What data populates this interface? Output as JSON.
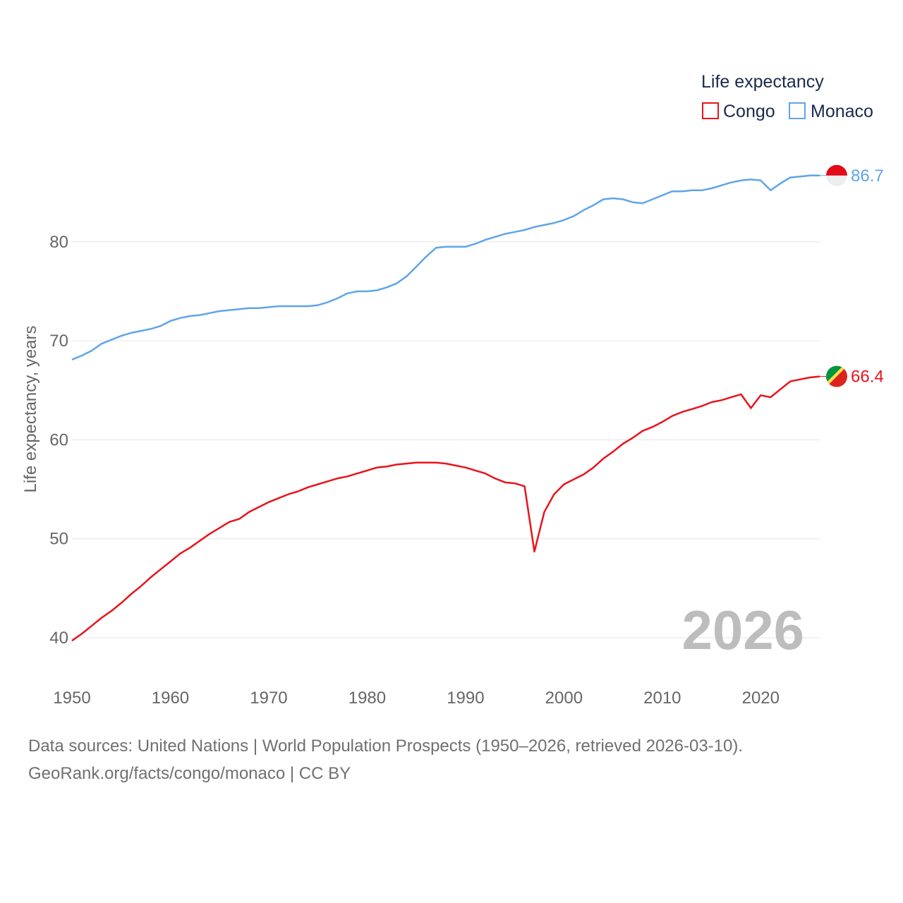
{
  "chart_data": {
    "type": "line",
    "legend": {
      "title": "Life expectancy",
      "placement": "top-right"
    },
    "ylabel": "Life expectancy, years",
    "xlabel": "",
    "xlim": [
      1950,
      2026
    ],
    "ylim": [
      35,
      90
    ],
    "x_ticks": [
      "1950",
      "1960",
      "1970",
      "1980",
      "1990",
      "2000",
      "2010",
      "2020"
    ],
    "y_ticks": [
      "40",
      "50",
      "60",
      "70",
      "80"
    ],
    "year_watermark": "2026",
    "series": [
      {
        "name": "Congo",
        "color": "#e8141c",
        "end_label": "66.4",
        "flag_icon": "congo-flag-icon",
        "points": [
          [
            1950,
            39.7
          ],
          [
            1951,
            40.4
          ],
          [
            1952,
            41.2
          ],
          [
            1953,
            42.0
          ],
          [
            1954,
            42.7
          ],
          [
            1955,
            43.5
          ],
          [
            1956,
            44.4
          ],
          [
            1957,
            45.2
          ],
          [
            1958,
            46.1
          ],
          [
            1959,
            46.9
          ],
          [
            1960,
            47.7
          ],
          [
            1961,
            48.5
          ],
          [
            1962,
            49.1
          ],
          [
            1963,
            49.8
          ],
          [
            1964,
            50.5
          ],
          [
            1965,
            51.1
          ],
          [
            1966,
            51.7
          ],
          [
            1967,
            52.0
          ],
          [
            1968,
            52.7
          ],
          [
            1969,
            53.2
          ],
          [
            1970,
            53.7
          ],
          [
            1971,
            54.1
          ],
          [
            1972,
            54.5
          ],
          [
            1973,
            54.8
          ],
          [
            1974,
            55.2
          ],
          [
            1975,
            55.5
          ],
          [
            1976,
            55.8
          ],
          [
            1977,
            56.1
          ],
          [
            1978,
            56.3
          ],
          [
            1979,
            56.6
          ],
          [
            1980,
            56.9
          ],
          [
            1981,
            57.2
          ],
          [
            1982,
            57.3
          ],
          [
            1983,
            57.5
          ],
          [
            1984,
            57.6
          ],
          [
            1985,
            57.7
          ],
          [
            1986,
            57.7
          ],
          [
            1987,
            57.7
          ],
          [
            1988,
            57.6
          ],
          [
            1989,
            57.4
          ],
          [
            1990,
            57.2
          ],
          [
            1991,
            56.9
          ],
          [
            1992,
            56.6
          ],
          [
            1993,
            56.1
          ],
          [
            1994,
            55.7
          ],
          [
            1995,
            55.6
          ],
          [
            1996,
            55.3
          ],
          [
            1997,
            48.7
          ],
          [
            1998,
            52.7
          ],
          [
            1999,
            54.5
          ],
          [
            2000,
            55.5
          ],
          [
            2001,
            56.0
          ],
          [
            2002,
            56.5
          ],
          [
            2003,
            57.2
          ],
          [
            2004,
            58.1
          ],
          [
            2005,
            58.8
          ],
          [
            2006,
            59.6
          ],
          [
            2007,
            60.2
          ],
          [
            2008,
            60.9
          ],
          [
            2009,
            61.3
          ],
          [
            2010,
            61.8
          ],
          [
            2011,
            62.4
          ],
          [
            2012,
            62.8
          ],
          [
            2013,
            63.1
          ],
          [
            2014,
            63.4
          ],
          [
            2015,
            63.8
          ],
          [
            2016,
            64.0
          ],
          [
            2017,
            64.3
          ],
          [
            2018,
            64.6
          ],
          [
            2019,
            63.2
          ],
          [
            2020,
            64.5
          ],
          [
            2021,
            64.3
          ],
          [
            2022,
            65.1
          ],
          [
            2023,
            65.9
          ],
          [
            2024,
            66.1
          ],
          [
            2025,
            66.3
          ],
          [
            2026,
            66.4
          ]
        ]
      },
      {
        "name": "Monaco",
        "color": "#60a5e8",
        "end_label": "86.7",
        "flag_icon": "monaco-flag-icon",
        "points": [
          [
            1950,
            68.1
          ],
          [
            1951,
            68.5
          ],
          [
            1952,
            69.0
          ],
          [
            1953,
            69.7
          ],
          [
            1954,
            70.1
          ],
          [
            1955,
            70.5
          ],
          [
            1956,
            70.8
          ],
          [
            1957,
            71.0
          ],
          [
            1958,
            71.2
          ],
          [
            1959,
            71.5
          ],
          [
            1960,
            72.0
          ],
          [
            1961,
            72.3
          ],
          [
            1962,
            72.5
          ],
          [
            1963,
            72.6
          ],
          [
            1964,
            72.8
          ],
          [
            1965,
            73.0
          ],
          [
            1966,
            73.1
          ],
          [
            1967,
            73.2
          ],
          [
            1968,
            73.3
          ],
          [
            1969,
            73.3
          ],
          [
            1970,
            73.4
          ],
          [
            1971,
            73.5
          ],
          [
            1972,
            73.5
          ],
          [
            1973,
            73.5
          ],
          [
            1974,
            73.5
          ],
          [
            1975,
            73.6
          ],
          [
            1976,
            73.9
          ],
          [
            1977,
            74.3
          ],
          [
            1978,
            74.8
          ],
          [
            1979,
            75.0
          ],
          [
            1980,
            75.0
          ],
          [
            1981,
            75.1
          ],
          [
            1982,
            75.4
          ],
          [
            1983,
            75.8
          ],
          [
            1984,
            76.5
          ],
          [
            1985,
            77.5
          ],
          [
            1986,
            78.5
          ],
          [
            1987,
            79.4
          ],
          [
            1988,
            79.5
          ],
          [
            1989,
            79.5
          ],
          [
            1990,
            79.5
          ],
          [
            1991,
            79.8
          ],
          [
            1992,
            80.2
          ],
          [
            1993,
            80.5
          ],
          [
            1994,
            80.8
          ],
          [
            1995,
            81.0
          ],
          [
            1996,
            81.2
          ],
          [
            1997,
            81.5
          ],
          [
            1998,
            81.7
          ],
          [
            1999,
            81.9
          ],
          [
            2000,
            82.2
          ],
          [
            2001,
            82.6
          ],
          [
            2002,
            83.2
          ],
          [
            2003,
            83.7
          ],
          [
            2004,
            84.3
          ],
          [
            2005,
            84.4
          ],
          [
            2006,
            84.3
          ],
          [
            2007,
            84.0
          ],
          [
            2008,
            83.9
          ],
          [
            2009,
            84.3
          ],
          [
            2010,
            84.7
          ],
          [
            2011,
            85.1
          ],
          [
            2012,
            85.1
          ],
          [
            2013,
            85.2
          ],
          [
            2014,
            85.2
          ],
          [
            2015,
            85.4
          ],
          [
            2016,
            85.7
          ],
          [
            2017,
            86.0
          ],
          [
            2018,
            86.2
          ],
          [
            2019,
            86.3
          ],
          [
            2020,
            86.2
          ],
          [
            2021,
            85.2
          ],
          [
            2022,
            85.9
          ],
          [
            2023,
            86.5
          ],
          [
            2024,
            86.6
          ],
          [
            2025,
            86.7
          ],
          [
            2026,
            86.7
          ]
        ]
      }
    ]
  },
  "footer": {
    "source": "Data sources: United Nations | World Population Prospects (1950–2026, retrieved 2026-03-10).",
    "credit": "GeoRank.org/facts/congo/monaco | CC BY"
  }
}
